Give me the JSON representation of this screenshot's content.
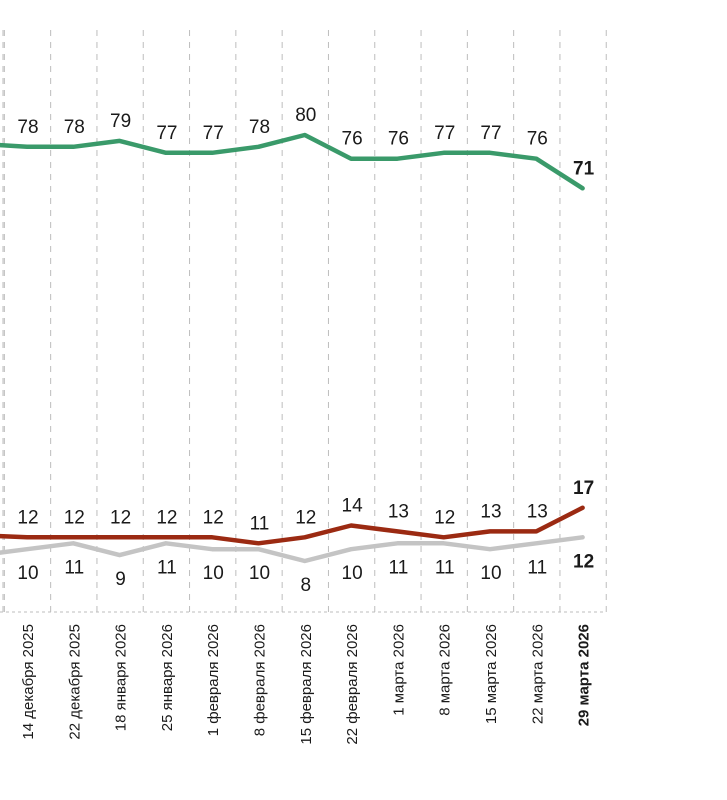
{
  "chart_data": {
    "type": "line",
    "title": "",
    "xlabel": "",
    "ylabel": "",
    "ylim": [
      0,
      85
    ],
    "grid": "vertical dashed",
    "categories": [
      "14 декабря 2025",
      "22 декабря 2025",
      "18 января 2026",
      "25 января 2026",
      "1 февраля 2026",
      "8 февраля 2026",
      "15 февраля 2026",
      "22 февраля 2026",
      "1 марта 2026",
      "8 марта 2026",
      "15 марта 2026",
      "22 марта 2026",
      "29 марта 2026"
    ],
    "series": [
      {
        "color": "#3a9a6a",
        "values": [
          78,
          78,
          79,
          77,
          77,
          78,
          80,
          76,
          76,
          77,
          77,
          76,
          71
        ],
        "labels_position": "above"
      },
      {
        "color": "#9b2a12",
        "values": [
          12,
          12,
          12,
          12,
          12,
          11,
          12,
          14,
          13,
          12,
          13,
          13,
          17
        ],
        "labels_position": "above"
      },
      {
        "color": "#c4c4c4",
        "values": [
          10,
          11,
          9,
          11,
          10,
          10,
          8,
          10,
          11,
          11,
          10,
          11,
          12
        ],
        "labels_position": "below"
      }
    ]
  }
}
